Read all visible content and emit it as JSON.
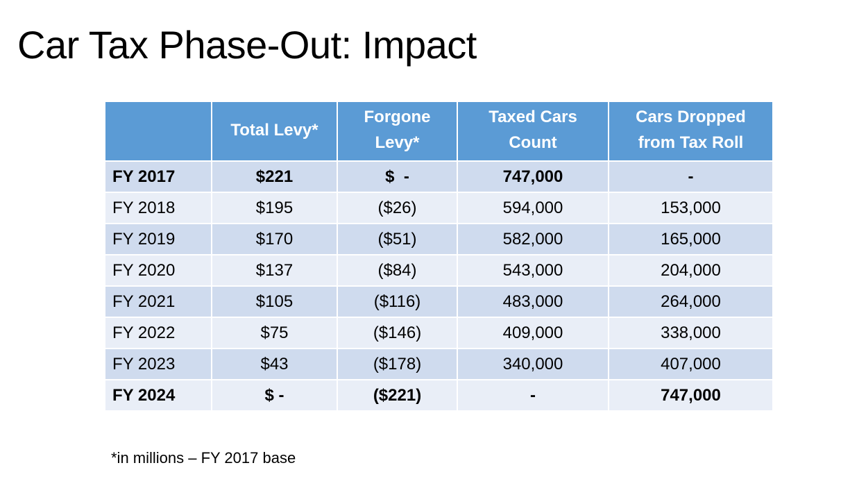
{
  "slide": {
    "title": "Car Tax Phase-Out: Impact",
    "footnote": "*in millions – FY 2017 base"
  },
  "table": {
    "headers": [
      "",
      "Total Levy*",
      "Forgone\nLevy*",
      "Taxed Cars\nCount",
      "Cars Dropped\nfrom Tax Roll"
    ],
    "rows": [
      [
        "FY 2017",
        "$221",
        "$  -",
        "747,000",
        "-"
      ],
      [
        "FY 2018",
        "$195",
        "($26)",
        "594,000",
        "153,000"
      ],
      [
        "FY 2019",
        "$170",
        "($51)",
        "582,000",
        "165,000"
      ],
      [
        "FY 2020",
        "$137",
        "($84)",
        "543,000",
        "204,000"
      ],
      [
        "FY 2021",
        "$105",
        "($116)",
        "483,000",
        "264,000"
      ],
      [
        "FY 2022",
        "$75",
        "($146)",
        "409,000",
        "338,000"
      ],
      [
        "FY 2023",
        "$43",
        "($178)",
        "340,000",
        "407,000"
      ],
      [
        "FY 2024",
        "$ -",
        "($221)",
        "-",
        "747,000"
      ]
    ]
  },
  "colors": {
    "header_bg": "#5b9bd5",
    "band_dark": "#cfdbee",
    "band_light": "#e9eef7"
  }
}
